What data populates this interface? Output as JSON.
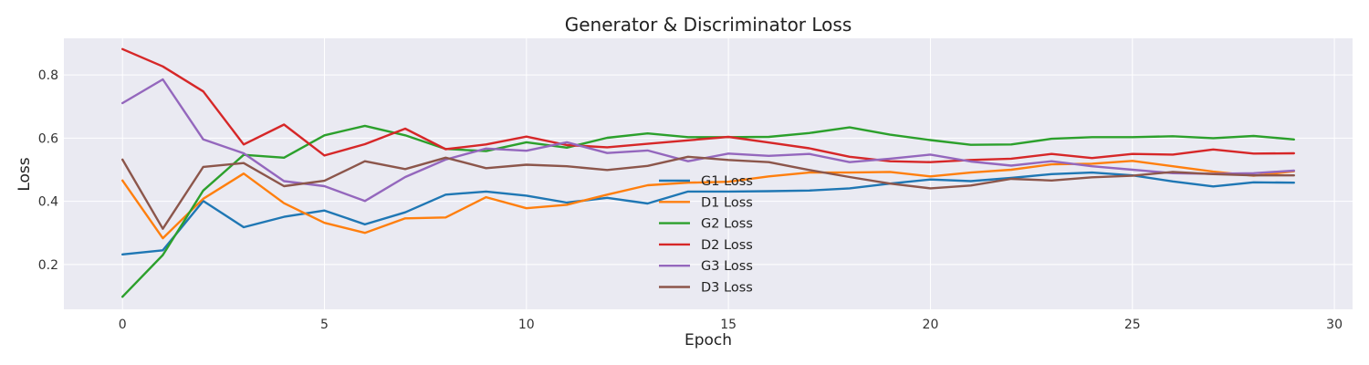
{
  "chart_data": {
    "type": "line",
    "title": "Generator & Discriminator Loss",
    "xlabel": "Epoch",
    "ylabel": "Loss",
    "xlim": [
      -1.45,
      30.45
    ],
    "ylim": [
      0.058,
      0.916
    ],
    "xticks": [
      0,
      5,
      10,
      15,
      20,
      25,
      30
    ],
    "yticks": [
      0.2,
      0.4,
      0.6,
      0.8
    ],
    "grid": true,
    "legend_position": "center-bottom",
    "x": [
      0,
      1,
      2,
      3,
      4,
      5,
      6,
      7,
      8,
      9,
      10,
      11,
      12,
      13,
      14,
      15,
      16,
      17,
      18,
      19,
      20,
      21,
      22,
      23,
      24,
      25,
      26,
      27,
      28,
      29
    ],
    "series": [
      {
        "name": "G1 Loss",
        "color": "#1f77b4",
        "values": [
          0.232,
          0.245,
          0.401,
          0.318,
          0.351,
          0.371,
          0.327,
          0.365,
          0.421,
          0.431,
          0.418,
          0.396,
          0.411,
          0.393,
          0.431,
          0.431,
          0.432,
          0.434,
          0.441,
          0.456,
          0.469,
          0.464,
          0.474,
          0.486,
          0.491,
          0.482,
          0.463,
          0.447,
          0.46,
          0.459
        ]
      },
      {
        "name": "D1 Loss",
        "color": "#ff7f0e",
        "values": [
          0.466,
          0.283,
          0.408,
          0.488,
          0.394,
          0.332,
          0.3,
          0.346,
          0.349,
          0.413,
          0.378,
          0.389,
          0.421,
          0.451,
          0.459,
          0.462,
          0.479,
          0.491,
          0.491,
          0.493,
          0.479,
          0.491,
          0.5,
          0.517,
          0.519,
          0.528,
          0.511,
          0.494,
          0.481,
          0.495
        ]
      },
      {
        "name": "G2 Loss",
        "color": "#2ca02c",
        "values": [
          0.098,
          0.23,
          0.434,
          0.547,
          0.538,
          0.609,
          0.639,
          0.609,
          0.566,
          0.559,
          0.587,
          0.57,
          0.601,
          0.615,
          0.603,
          0.603,
          0.604,
          0.616,
          0.634,
          0.611,
          0.594,
          0.579,
          0.58,
          0.598,
          0.603,
          0.603,
          0.606,
          0.6,
          0.607,
          0.596
        ]
      },
      {
        "name": "D2 Loss",
        "color": "#d62728",
        "values": [
          0.882,
          0.827,
          0.748,
          0.58,
          0.643,
          0.545,
          0.581,
          0.63,
          0.565,
          0.58,
          0.605,
          0.578,
          0.571,
          0.582,
          0.593,
          0.604,
          0.586,
          0.568,
          0.541,
          0.527,
          0.524,
          0.531,
          0.535,
          0.55,
          0.537,
          0.55,
          0.548,
          0.564,
          0.551,
          0.552
        ]
      },
      {
        "name": "G3 Loss",
        "color": "#9467bd",
        "values": [
          0.711,
          0.786,
          0.596,
          0.552,
          0.464,
          0.448,
          0.401,
          0.477,
          0.532,
          0.567,
          0.56,
          0.587,
          0.553,
          0.561,
          0.527,
          0.551,
          0.544,
          0.55,
          0.524,
          0.535,
          0.548,
          0.526,
          0.513,
          0.527,
          0.511,
          0.5,
          0.489,
          0.487,
          0.489,
          0.497
        ]
      },
      {
        "name": "D3 Loss",
        "color": "#8c564b",
        "values": [
          0.532,
          0.313,
          0.509,
          0.521,
          0.448,
          0.465,
          0.527,
          0.502,
          0.538,
          0.505,
          0.516,
          0.511,
          0.499,
          0.512,
          0.541,
          0.531,
          0.524,
          0.499,
          0.477,
          0.456,
          0.441,
          0.45,
          0.471,
          0.466,
          0.476,
          0.481,
          0.493,
          0.486,
          0.482,
          0.482
        ]
      }
    ]
  }
}
